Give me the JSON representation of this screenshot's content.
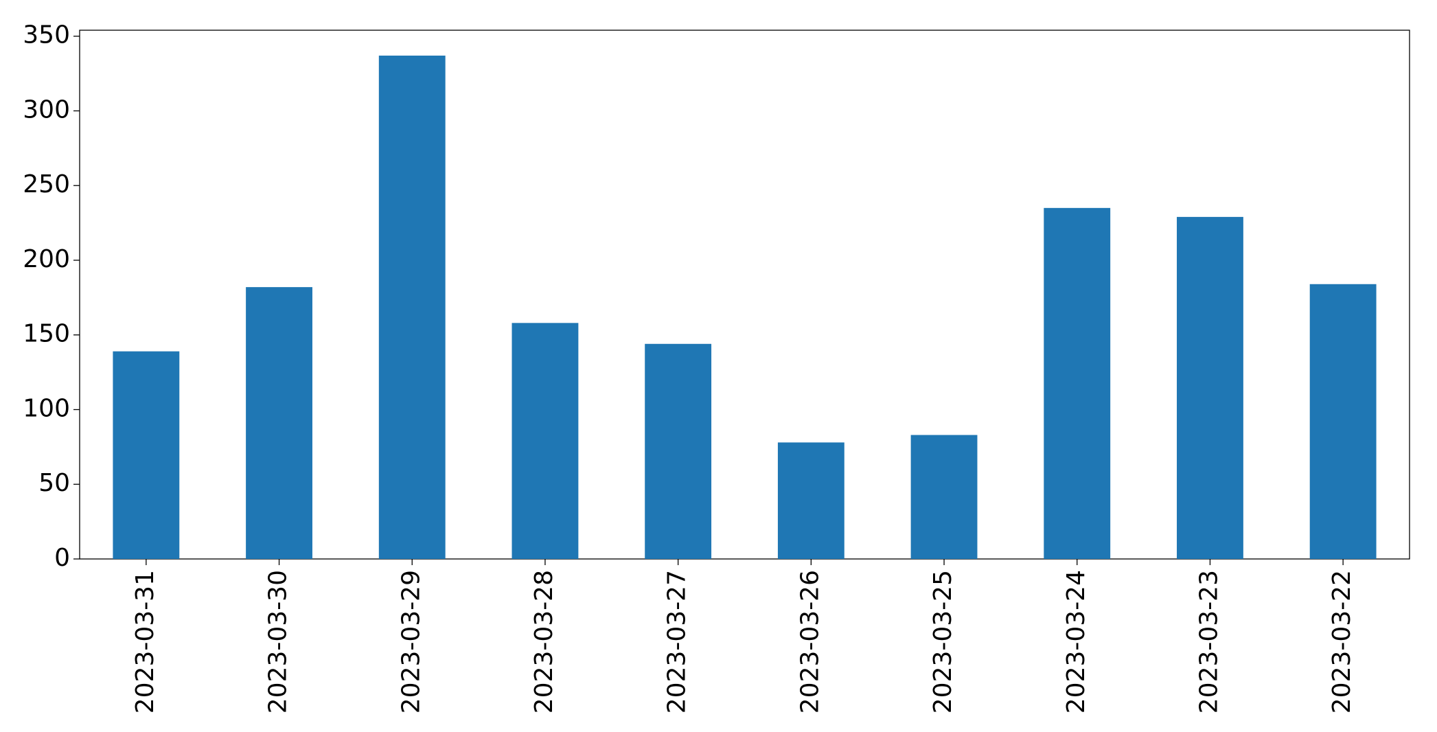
{
  "chart_data": {
    "type": "bar",
    "categories": [
      "2023-03-31",
      "2023-03-30",
      "2023-03-29",
      "2023-03-28",
      "2023-03-27",
      "2023-03-26",
      "2023-03-25",
      "2023-03-24",
      "2023-03-23",
      "2023-03-22"
    ],
    "values": [
      139,
      182,
      337,
      158,
      144,
      78,
      83,
      235,
      229,
      184
    ],
    "color": "#1f77b4",
    "ylim": [
      0,
      354
    ],
    "yticks": [
      0,
      50,
      100,
      150,
      200,
      250,
      300,
      350
    ],
    "grid": false
  }
}
